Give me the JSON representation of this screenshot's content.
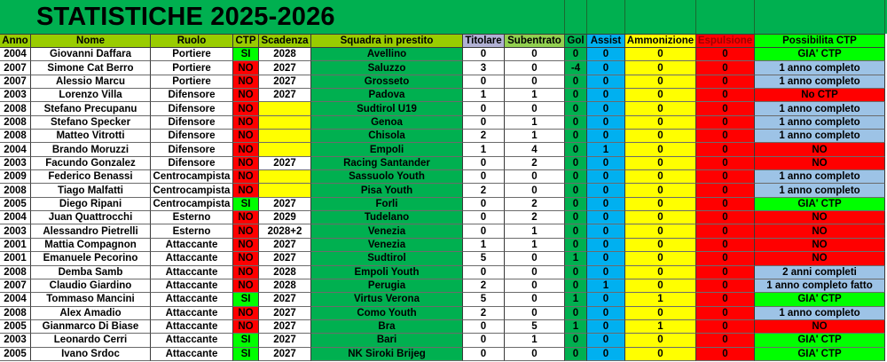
{
  "title": "STATISTICHE 2025-2026",
  "colors": {
    "title_green": "#00b050",
    "header_olive": "#99cc00",
    "titolare_header": "#b1b1d4",
    "subentrato_header": "#92d050",
    "gol": "#00b050",
    "assist": "#00b0f0",
    "ammonizione": "#ffff00",
    "espulsione": "#ff0000",
    "possibilita_header": "#00ff00",
    "si": "#00ff00",
    "no": "#ff0000",
    "scadenza_empty": "#ffff00",
    "squadra": "#00b050",
    "gia_ctp": "#00ff00",
    "anno_completo": "#9dc3e6",
    "no_ctp": "#ff0000"
  },
  "headers": [
    "Anno",
    "Nome",
    "Ruolo",
    "CTP",
    "Scadenza",
    "Squadra in prestito",
    "Titolare",
    "Subentrato",
    "Gol",
    "Assist",
    "Ammonizione",
    "Espulsione",
    "Possibilita CTP"
  ],
  "rows": [
    [
      "2004",
      "Giovanni Daffara",
      "Portiere",
      "SI",
      "2028",
      "Avellino",
      "0",
      "0",
      "0",
      "0",
      "0",
      "0",
      "GIA' CTP"
    ],
    [
      "2007",
      "Simone Cat Berro",
      "Portiere",
      "NO",
      "2027",
      "Saluzzo",
      "3",
      "0",
      "-4",
      "0",
      "0",
      "0",
      "1 anno completo"
    ],
    [
      "2007",
      "Alessio Marcu",
      "Portiere",
      "NO",
      "2027",
      "Grosseto",
      "0",
      "0",
      "0",
      "0",
      "0",
      "0",
      "1 anno completo"
    ],
    [
      "2003",
      "Lorenzo Villa",
      "Difensore",
      "NO",
      "2027",
      "Padova",
      "1",
      "1",
      "0",
      "0",
      "0",
      "0",
      "No CTP"
    ],
    [
      "2008",
      "Stefano Precupanu",
      "Difensore",
      "NO",
      "",
      "Sudtirol U19",
      "0",
      "0",
      "0",
      "0",
      "0",
      "0",
      "1 anno completo"
    ],
    [
      "2008",
      "Stefano Specker",
      "Difensore",
      "NO",
      "",
      "Genoa",
      "0",
      "1",
      "0",
      "0",
      "0",
      "0",
      "1 anno completo"
    ],
    [
      "2008",
      "Matteo Vitrotti",
      "Difensore",
      "NO",
      "",
      "Chisola",
      "2",
      "1",
      "0",
      "0",
      "0",
      "0",
      "1 anno completo"
    ],
    [
      "2004",
      "Brando Moruzzi",
      "Difensore",
      "NO",
      "",
      "Empoli",
      "1",
      "4",
      "0",
      "1",
      "0",
      "0",
      "NO"
    ],
    [
      "2003",
      "Facundo Gonzalez",
      "Difensore",
      "NO",
      "2027",
      "Racing Santander",
      "0",
      "2",
      "0",
      "0",
      "0",
      "0",
      "NO"
    ],
    [
      "2009",
      "Federico Benassi",
      "Centrocampista",
      "NO",
      "",
      "Sassuolo Youth",
      "0",
      "0",
      "0",
      "0",
      "0",
      "0",
      "1 anno completo"
    ],
    [
      "2008",
      "Tiago Malfatti",
      "Centrocampista",
      "NO",
      "",
      "Pisa Youth",
      "2",
      "0",
      "0",
      "0",
      "0",
      "0",
      "1 anno completo"
    ],
    [
      "2005",
      "Diego Ripani",
      "Centrocampista",
      "SI",
      "2027",
      "Forli",
      "0",
      "2",
      "0",
      "0",
      "0",
      "0",
      "GIA' CTP"
    ],
    [
      "2004",
      "Juan Quattrocchi",
      "Esterno",
      "NO",
      "2029",
      "Tudelano",
      "0",
      "2",
      "0",
      "0",
      "0",
      "0",
      "NO"
    ],
    [
      "2003",
      "Alessandro Pietrelli",
      "Esterno",
      "NO",
      "2028+2",
      "Venezia",
      "0",
      "1",
      "0",
      "0",
      "0",
      "0",
      "NO"
    ],
    [
      "2001",
      "Mattia Compagnon",
      "Attaccante",
      "NO",
      "2027",
      "Venezia",
      "1",
      "1",
      "0",
      "0",
      "0",
      "0",
      "NO"
    ],
    [
      "2001",
      "Emanuele Pecorino",
      "Attaccante",
      "NO",
      "2027",
      "Sudtirol",
      "5",
      "0",
      "1",
      "0",
      "0",
      "0",
      "NO"
    ],
    [
      "2008",
      "Demba Samb",
      "Attaccante",
      "NO",
      "2028",
      "Empoli Youth",
      "0",
      "0",
      "0",
      "0",
      "0",
      "0",
      "2 anni completi"
    ],
    [
      "2007",
      "Claudio Giardino",
      "Attaccante",
      "NO",
      "2028",
      "Perugia",
      "2",
      "0",
      "0",
      "1",
      "0",
      "0",
      "1 anno completo fatto"
    ],
    [
      "2004",
      "Tommaso Mancini",
      "Attaccante",
      "SI",
      "2027",
      "Virtus Verona",
      "5",
      "0",
      "1",
      "0",
      "1",
      "0",
      "GIA' CTP"
    ],
    [
      "2008",
      "Alex Amadio",
      "Attaccante",
      "NO",
      "2027",
      "Como Youth",
      "2",
      "0",
      "0",
      "0",
      "0",
      "0",
      "1 anno completo"
    ],
    [
      "2005",
      "Gianmarco Di Biase",
      "Attaccante",
      "NO",
      "2027",
      "Bra",
      "0",
      "5",
      "1",
      "0",
      "1",
      "0",
      "NO"
    ],
    [
      "2003",
      "Leonardo Cerri",
      "Attaccante",
      "SI",
      "2027",
      "Bari",
      "0",
      "1",
      "0",
      "0",
      "0",
      "0",
      "GIA' CTP"
    ],
    [
      "2005",
      "Ivano Srdoc",
      "Attaccante",
      "SI",
      "2027",
      "NK Siroki Brijeg",
      "0",
      "0",
      "0",
      "0",
      "0",
      "0",
      "GIA' CTP"
    ]
  ]
}
